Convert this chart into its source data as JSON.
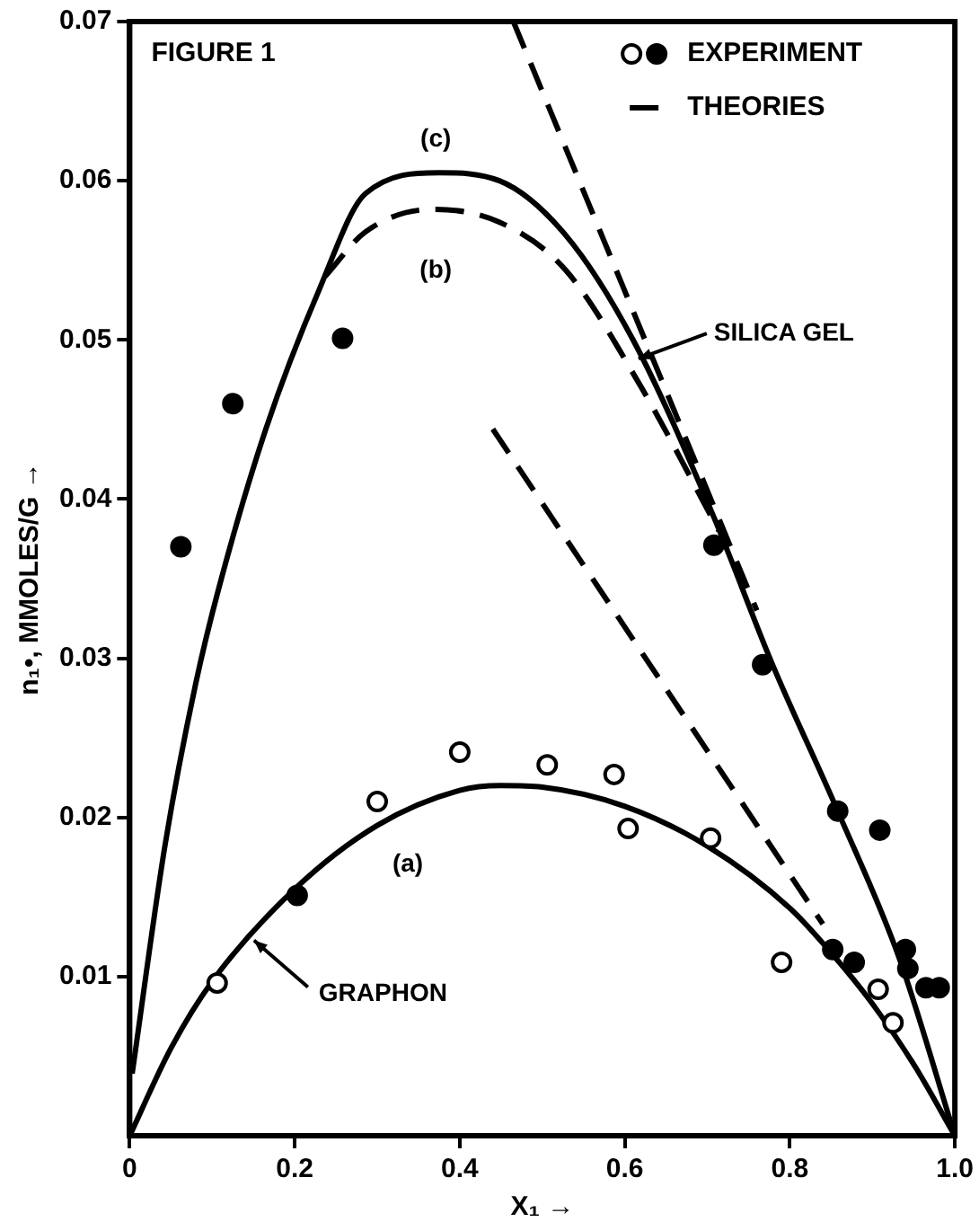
{
  "chart_data": {
    "type": "scatter",
    "title": "FIGURE 1",
    "xlabel": "X₁ →",
    "ylabel": "n₁•, MMOLES/G →",
    "xlim": [
      0,
      1
    ],
    "xticks": [
      0,
      0.2,
      0.4,
      0.6,
      0.8,
      {
        "value": 1,
        "label": "1.0"
      }
    ],
    "ylim": [
      0,
      0.07
    ],
    "yticks": [
      0.01,
      0.02,
      0.03,
      0.04,
      0.05,
      0.06,
      0.07
    ],
    "grid": false,
    "legend": "top right",
    "marker": "circle",
    "series": [
      {
        "color": "#ffffff",
        "x": [
          0.106,
          0.3,
          0.4,
          0.506,
          0.587,
          0.604,
          0.704,
          0.79,
          0.907,
          0.925
        ],
        "values": [
          0.0096,
          0.021,
          0.0241,
          0.0233,
          0.0227,
          0.0193,
          0.0187,
          0.0109,
          0.0092,
          0.0071
        ]
      },
      {
        "name": "EXPERIMENT",
        "color": "#000000",
        "x": [
          0.062,
          0.125,
          0.258,
          0.203,
          0.708,
          0.767,
          0.858,
          0.909,
          0.852,
          0.878,
          0.94,
          0.943,
          0.965,
          0.981
        ],
        "values": [
          0.037,
          0.046,
          0.0501,
          0.0151,
          0.0371,
          0.0296,
          0.0204,
          0.0192,
          0.0117,
          0.0109,
          0.0117,
          0.0105,
          0.0093,
          0.0093
        ]
      },
      {
        "type": "line",
        "color": "#000000",
        "line_style": "solid",
        "marker": "none",
        "x": [
          0,
          0.05,
          0.1,
          0.2,
          0.3,
          0.4,
          0.45,
          0.5,
          0.6,
          0.7,
          0.8,
          0.85,
          0.9,
          0.95,
          1
        ],
        "values": [
          0,
          0.0055,
          0.0097,
          0.0155,
          0.0195,
          0.0217,
          0.022,
          0.0219,
          0.0207,
          0.0182,
          0.0143,
          0.0115,
          0.0083,
          0.0045,
          0
        ]
      },
      {
        "type": "line",
        "color": "#000000",
        "line_style": "solid",
        "marker": "none",
        "x": [
          0.003,
          0.043,
          0.08,
          0.108,
          0.165,
          0.23,
          0.286,
          0.375,
          0.448,
          0.528,
          0.61,
          0.706,
          0.779,
          0.858,
          0.933,
          1
        ],
        "values": [
          0.0039,
          0.0183,
          0.0284,
          0.0344,
          0.0444,
          0.0532,
          0.0592,
          0.0605,
          0.06,
          0.0566,
          0.05,
          0.0391,
          0.0296,
          0.0204,
          0.0111,
          0
        ]
      },
      {
        "name": "THEORIES",
        "type": "line",
        "color": "#000000",
        "line_style": "dashed",
        "marker": "none",
        "x": [
          0.237,
          0.286,
          0.367,
          0.448,
          0.528,
          0.618,
          0.714
        ],
        "values": [
          0.054,
          0.0568,
          0.0582,
          0.0574,
          0.0544,
          0.0472,
          0.038
        ]
      },
      {
        "type": "line",
        "color": "#000000",
        "line_style": "dashed",
        "marker": "none",
        "x": [
          0.465,
          0.76
        ],
        "values": [
          0.07,
          0.033
        ]
      },
      {
        "type": "line",
        "color": "#000000",
        "line_style": "dashed",
        "marker": "none",
        "x": [
          0.44,
          0.84
        ],
        "values": [
          0.0444,
          0.0133
        ]
      }
    ],
    "annotations": [
      "(c)",
      "(b)",
      "(a)",
      "SILICA GEL",
      "GRAPHON"
    ]
  }
}
